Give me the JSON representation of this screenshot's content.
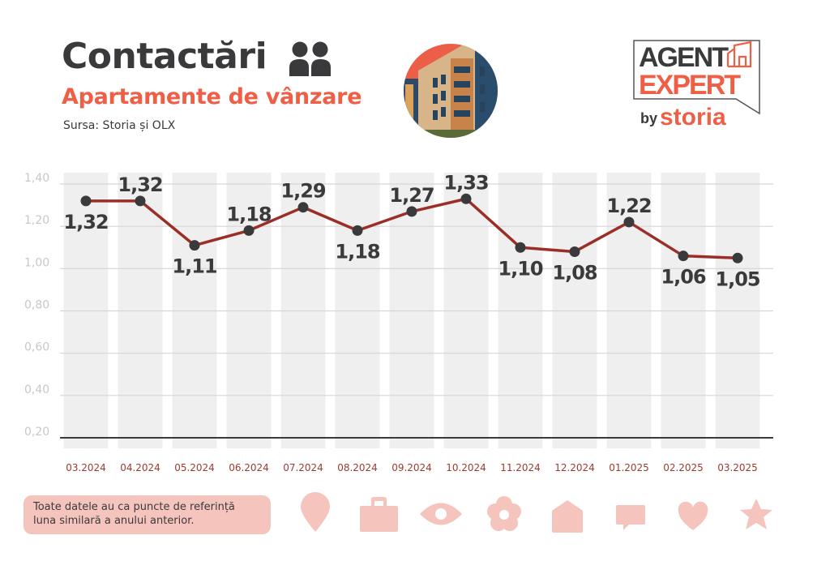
{
  "header": {
    "title": "Contactări",
    "subtitle": "Apartamente de vânzare",
    "source": "Sursa: Storia și OLX",
    "title_icon": "people-icon",
    "image": "apartment-building-photo"
  },
  "logo": {
    "line1": "AGENT",
    "line2": "EXPERT",
    "by": "by",
    "brand": "storia"
  },
  "note": {
    "line1": "Toate datele au ca puncte de referință",
    "line2": "luna similară a anului anterior."
  },
  "footer_icons": [
    "map-pin-icon",
    "briefcase-icon",
    "eye-icon",
    "flower-icon",
    "house-icon",
    "chat-bubble-icon",
    "heart-icon",
    "star-icon"
  ],
  "colors": {
    "title": "#3a3a3c",
    "accent": "#ef5f46",
    "line": "#9b2f28",
    "point": "#3a3a3c",
    "column": "#efefef",
    "xlabel": "#9b3a32",
    "ytick": "#c8c8c8",
    "icon": "#f5c4bd"
  },
  "chart_data": {
    "type": "line",
    "title": "Contactări",
    "xlabel": "",
    "ylabel": "",
    "grid": true,
    "ylim": [
      0.2,
      1.4
    ],
    "yticks": [
      "0,20",
      "0,40",
      "0,60",
      "0,80",
      "1,00",
      "1,20",
      "1,40"
    ],
    "ytick_values": [
      0.2,
      0.4,
      0.6,
      0.8,
      1.0,
      1.2,
      1.4
    ],
    "categories": [
      "03.2024",
      "04.2024",
      "05.2024",
      "06.2024",
      "07.2024",
      "08.2024",
      "09.2024",
      "10.2024",
      "11.2024",
      "12.2024",
      "01.2025",
      "02.2025",
      "03.2025"
    ],
    "values": [
      1.32,
      1.32,
      1.11,
      1.18,
      1.29,
      1.18,
      1.27,
      1.33,
      1.1,
      1.08,
      1.22,
      1.06,
      1.05
    ],
    "labels": [
      "1,32",
      "1,32",
      "1,11",
      "1,18",
      "1,29",
      "1,18",
      "1,27",
      "1,33",
      "1,10",
      "1,08",
      "1,22",
      "1,06",
      "1,05"
    ],
    "label_position": [
      "below",
      "above",
      "below",
      "above",
      "above",
      "below",
      "above",
      "above",
      "below",
      "below",
      "above",
      "below",
      "below"
    ]
  }
}
